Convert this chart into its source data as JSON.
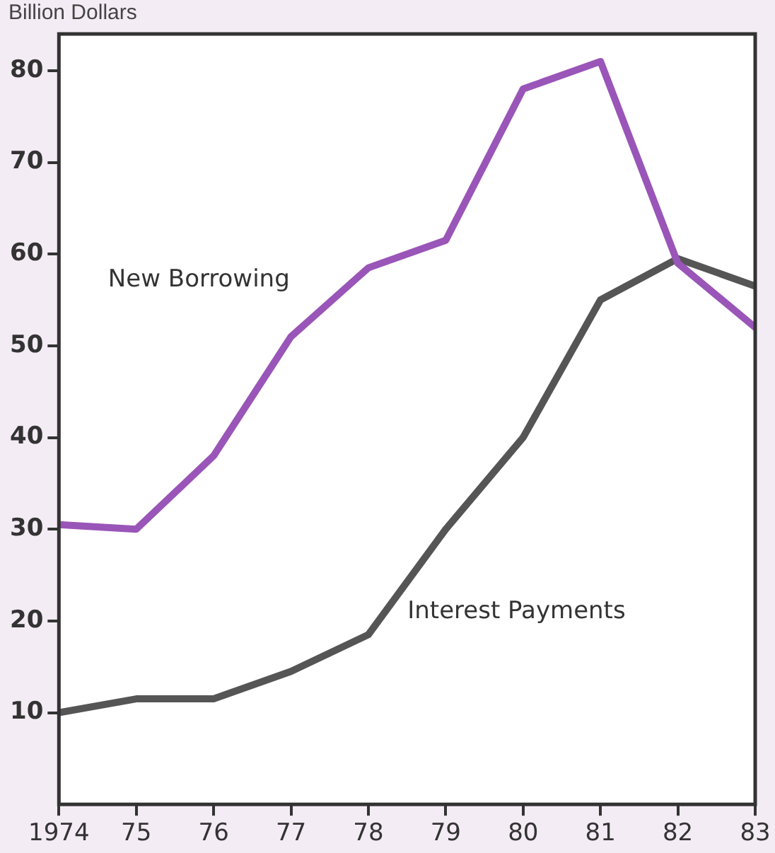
{
  "chart_data": {
    "type": "line",
    "ylabel": "Billion Dollars",
    "x": [
      1974,
      1975,
      1976,
      1977,
      1978,
      1979,
      1980,
      1981,
      1982,
      1983
    ],
    "series": [
      {
        "name": "New Borrowing",
        "color": "#9a55b8",
        "values": [
          30.5,
          30,
          38,
          51,
          58.5,
          61.5,
          78,
          81,
          59,
          52
        ]
      },
      {
        "name": "Interest Payments",
        "color": "#555555",
        "values": [
          10,
          11.5,
          11.5,
          14.5,
          18.5,
          30,
          40,
          55,
          59.5,
          56.5
        ]
      }
    ],
    "xlim": [
      1974,
      1983
    ],
    "xticks": [
      1974,
      {
        "value": 1975,
        "label": "75"
      },
      {
        "value": 1976,
        "label": "76"
      },
      {
        "value": 1977,
        "label": "77"
      },
      {
        "value": 1978,
        "label": "78"
      },
      {
        "value": 1979,
        "label": "79"
      },
      {
        "value": 1980,
        "label": "80"
      },
      {
        "value": 1981,
        "label": "81"
      },
      {
        "value": 1982,
        "label": "82"
      },
      {
        "value": 1983,
        "label": "83"
      }
    ],
    "ylim": [
      0,
      84
    ],
    "yticks": [
      10,
      20,
      30,
      40,
      50,
      60,
      70,
      80
    ],
    "grid": false,
    "legend": false,
    "marker": "none",
    "line_style": "solid"
  }
}
